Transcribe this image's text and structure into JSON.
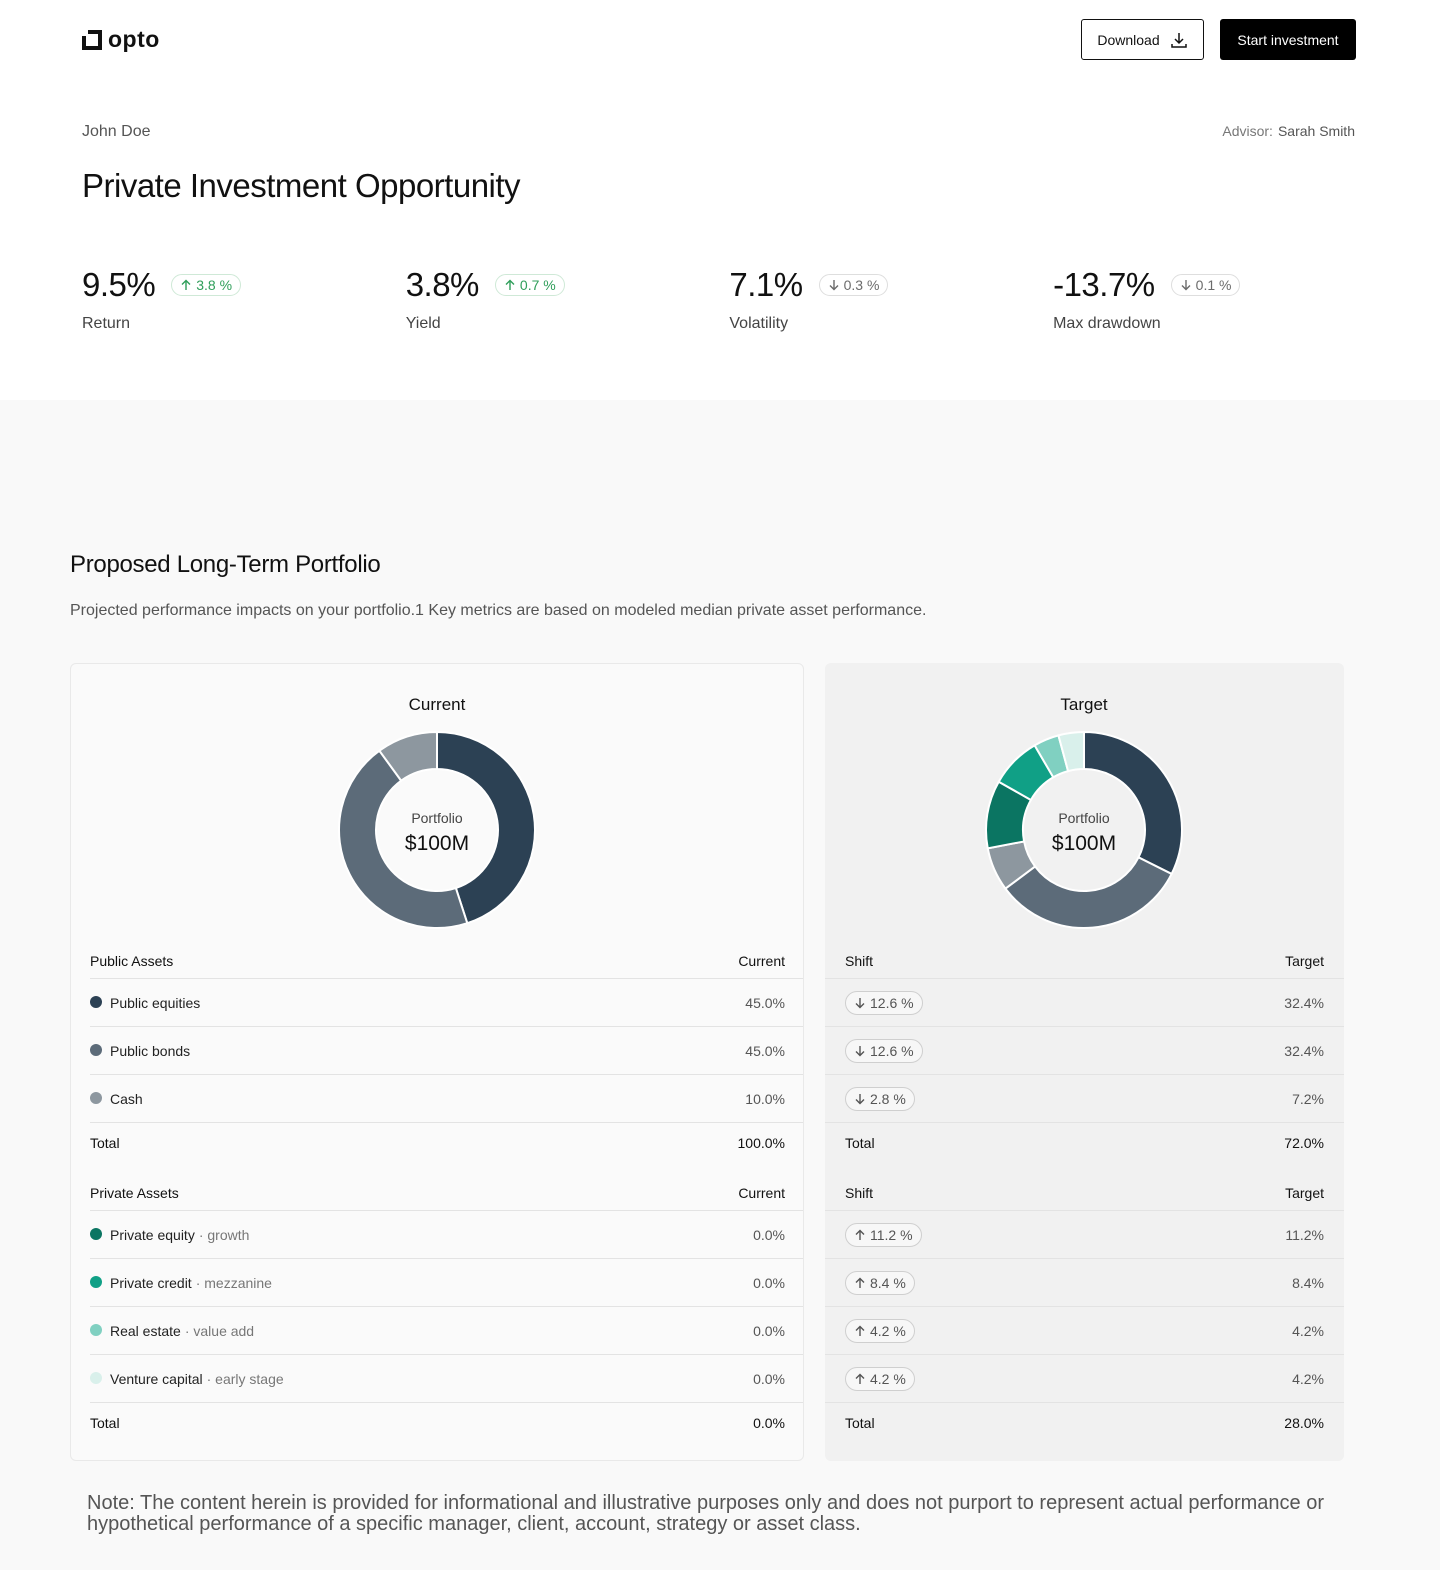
{
  "header": {
    "logo": "opto",
    "buttons": [
      "Download",
      "Start investment"
    ]
  },
  "client": "John Doe",
  "advisor_label": "Advisor:",
  "advisor": "Sarah Smith",
  "title": "Private Investment Opportunity",
  "metrics": [
    {
      "value": "9.5%",
      "change": "3.8 %",
      "direction": "up",
      "label": "Return"
    },
    {
      "value": "3.8%",
      "change": "0.7 %",
      "direction": "up",
      "label": "Yield"
    },
    {
      "value": "7.1%",
      "change": "0.3 %",
      "direction": "down",
      "label": "Volatility"
    },
    {
      "value": "-13.7%",
      "change": "0.1 %",
      "direction": "down",
      "label": "Max drawdown"
    }
  ],
  "portfolio": {
    "title": "Proposed Long-Term Portfolio",
    "description": "Projected performance impacts on your portfolio.1 Key metrics are based on modeled median private asset performance.",
    "charts": [
      {
        "title": "Current",
        "center_label": "Portfolio",
        "center_value": "$100M"
      },
      {
        "title": "Target",
        "center_label": "Portfolio",
        "center_value": "$100M"
      }
    ],
    "groups": [
      {
        "name": "Public Assets",
        "current_header": "Current",
        "shift_header": "Shift",
        "target_header": "Target",
        "rows": [
          {
            "name": "Public equities",
            "color": "#2c4154",
            "current": {
              "value": 45,
              "label": "45.0%"
            },
            "shift": "12.6 %",
            "shift_direction": "down",
            "target": {
              "value": 32.4,
              "label": "32.4%"
            }
          },
          {
            "name": "Public bonds",
            "color": "#5c6b79",
            "current": {
              "value": 45,
              "label": "45.0%"
            },
            "shift": "12.6 %",
            "shift_direction": "down",
            "target": {
              "value": 32.4,
              "label": "32.4%"
            }
          },
          {
            "name": "Cash",
            "color": "#8d979f",
            "current": {
              "value": 10,
              "label": "10.0%"
            },
            "shift": "2.8 %",
            "shift_direction": "down",
            "target": {
              "value": 7.2,
              "label": "7.2%"
            }
          }
        ],
        "total": {
          "label": "Total",
          "current": "100.0%",
          "target": "72.0%"
        }
      },
      {
        "name": "Private Assets",
        "current_header": "Current",
        "shift_header": "Shift",
        "target_header": "Target",
        "rows": [
          {
            "name": "Private equity",
            "detail": "· growth",
            "color": "#0b7562",
            "current": {
              "value": 0,
              "label": "0.0%"
            },
            "shift": "11.2 %",
            "shift_direction": "up",
            "target": {
              "value": 11.2,
              "label": "11.2%"
            }
          },
          {
            "name": "Private credit",
            "detail": "· mezzanine",
            "color": "#10a086",
            "current": {
              "value": 0,
              "label": "0.0%"
            },
            "shift": "8.4 %",
            "shift_direction": "up",
            "target": {
              "value": 8.4,
              "label": "8.4%"
            }
          },
          {
            "name": "Real estate",
            "detail": "· value add",
            "color": "#80d0c1",
            "current": {
              "value": 0,
              "label": "0.0%"
            },
            "shift": "4.2 %",
            "shift_direction": "up",
            "target": {
              "value": 4.2,
              "label": "4.2%"
            }
          },
          {
            "name": "Venture capital",
            "detail": "· early stage",
            "color": "#d9f0eb",
            "current": {
              "value": 0,
              "label": "0.0%"
            },
            "shift": "4.2 %",
            "shift_direction": "up",
            "target": {
              "value": 4.2,
              "label": "4.2%"
            }
          }
        ],
        "total": {
          "label": "Total",
          "current": "0.0%",
          "target": "28.0%"
        }
      }
    ]
  },
  "note": "Note: The content herein is provided for informational and illustrative purposes only and does not purport to represent actual performance or hypothetical performance of a specific manager, client, account, strategy or asset class."
}
